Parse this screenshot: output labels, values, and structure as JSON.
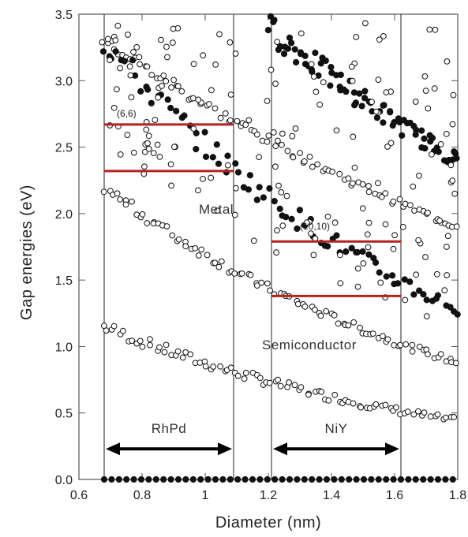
{
  "chart_data": {
    "type": "scatter",
    "xlabel": "Diameter (nm)",
    "ylabel": "Gap energies (eV)",
    "xlim": [
      0.6,
      1.8
    ],
    "ylim": [
      0.0,
      3.5
    ],
    "xticks": [
      0.6,
      0.8,
      1,
      1.2,
      1.4,
      1.6,
      1.8
    ],
    "xtick_labels": [
      "0.6",
      "0.8",
      "1",
      "1.2",
      "1.4",
      "1.6",
      "1.8"
    ],
    "yticks": [
      0.0,
      0.5,
      1.0,
      1.5,
      2.0,
      2.5,
      3.0,
      3.5
    ],
    "ytick_labels": [
      "0.0",
      "0.5",
      "1.0",
      "1.5",
      "2.0",
      "2.5",
      "3.0",
      "3.5"
    ],
    "grid": false,
    "series": [
      {
        "marker": "open-circle",
        "description_of_points": "semiconducting transitions",
        "bands": [
          {
            "x_range": [
              0.68,
              1.8
            ],
            "y_at_start": 1.15,
            "y_at_end": 0.44
          },
          {
            "x_range": [
              0.68,
              1.8
            ],
            "y_at_start": 2.2,
            "y_at_end": 0.88
          },
          {
            "x_range": [
              0.68,
              1.8
            ],
            "y_at_start": 3.3,
            "y_at_end": 1.9
          }
        ]
      },
      {
        "marker": "filled-circle",
        "description_of_points": "metallic transitions",
        "bands": [
          {
            "x_range": [
              0.68,
              1.8
            ],
            "y_at_start": 3.3,
            "y_at_end": 1.28
          },
          {
            "x_range": [
              1.2,
              1.8
            ],
            "y_at_start": 3.4,
            "y_at_end": 2.4
          }
        ],
        "zero_line": {
          "y": 0.0,
          "x_range": [
            0.68,
            1.8
          ]
        }
      }
    ],
    "vertical_lines": [
      0.68,
      1.09,
      1.21,
      1.62
    ],
    "horizontal_red_lines": [
      {
        "y": 2.67,
        "x_range": [
          0.68,
          1.09
        ]
      },
      {
        "y": 2.32,
        "x_range": [
          0.68,
          1.09
        ]
      },
      {
        "y": 1.79,
        "x_range": [
          1.21,
          1.62
        ]
      },
      {
        "y": 1.38,
        "x_range": [
          1.21,
          1.62
        ]
      }
    ],
    "ranges": [
      {
        "label": "RhPd",
        "x_range": [
          0.68,
          1.09
        ],
        "y": 0.23
      },
      {
        "label": "NiY",
        "x_range": [
          1.21,
          1.62
        ],
        "y": 0.23
      }
    ],
    "annotations": [
      {
        "text": "Metal",
        "x": 0.98,
        "y": 2.0
      },
      {
        "text": "Semiconductor",
        "x": 1.18,
        "y": 0.98
      },
      {
        "text": "(6,6)",
        "x": 0.72,
        "y": 2.73
      },
      {
        "text": "(10,10)",
        "x": 1.3,
        "y": 1.88
      }
    ],
    "colors": {
      "red_lines": "#b22222",
      "markers": "#111111",
      "frame": "#555555"
    }
  }
}
